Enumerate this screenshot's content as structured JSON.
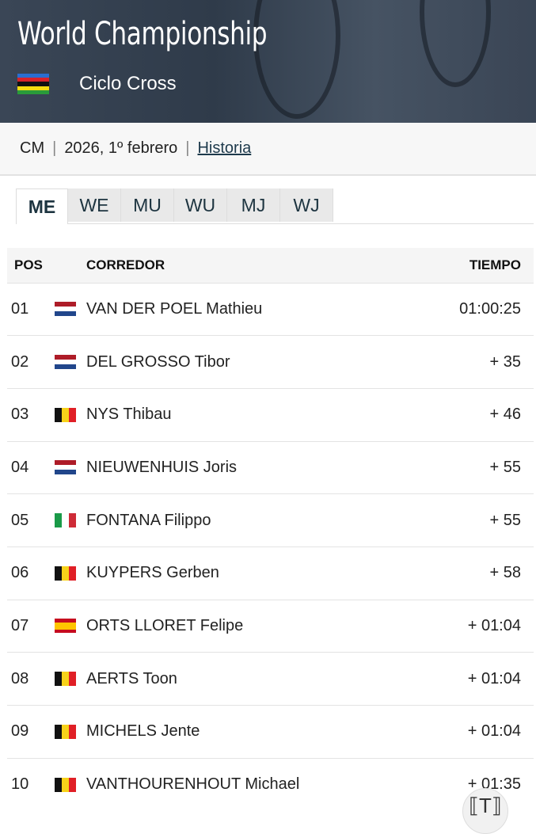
{
  "header": {
    "title": "World Championship",
    "discipline": "Ciclo Cross"
  },
  "meta": {
    "code": "CM",
    "date": "2026, 1º febrero",
    "history_link": "Historia"
  },
  "tabs": [
    {
      "label": "ME",
      "active": true
    },
    {
      "label": "WE"
    },
    {
      "label": "MU"
    },
    {
      "label": "WU"
    },
    {
      "label": "MJ"
    },
    {
      "label": "WJ"
    }
  ],
  "table": {
    "headers": {
      "pos": "POS",
      "rider": "CORREDOR",
      "time": "TIEMPO"
    },
    "rows": [
      {
        "pos": "01",
        "flag": "nl",
        "rider": "VAN DER POEL Mathieu",
        "time": "01:00:25"
      },
      {
        "pos": "02",
        "flag": "nl",
        "rider": "DEL GROSSO Tibor",
        "time": "+ 35"
      },
      {
        "pos": "03",
        "flag": "be",
        "rider": "NYS Thibau",
        "time": "+ 46"
      },
      {
        "pos": "04",
        "flag": "nl",
        "rider": "NIEUWENHUIS Joris",
        "time": "+ 55"
      },
      {
        "pos": "05",
        "flag": "it",
        "rider": "FONTANA Filippo",
        "time": "+ 55"
      },
      {
        "pos": "06",
        "flag": "be",
        "rider": "KUYPERS Gerben",
        "time": "+ 58"
      },
      {
        "pos": "07",
        "flag": "es",
        "rider": "ORTS LLORET Felipe",
        "time": "+ 01:04"
      },
      {
        "pos": "08",
        "flag": "be",
        "rider": "AERTS Toon",
        "time": "+ 01:04"
      },
      {
        "pos": "09",
        "flag": "be",
        "rider": "MICHELS Jente",
        "time": "+ 01:04"
      },
      {
        "pos": "10",
        "flag": "be",
        "rider": "VANTHOURENHOUT Michael",
        "time": "+ 01:35"
      }
    ]
  },
  "floating_button": {
    "icon": "text-scan-icon"
  }
}
